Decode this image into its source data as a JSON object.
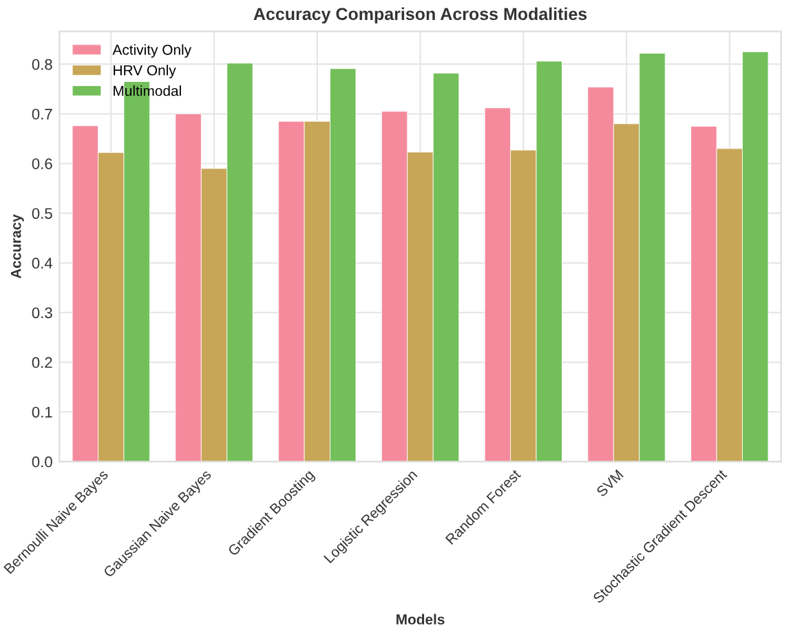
{
  "chart_data": {
    "type": "bar",
    "title": "Accuracy Comparison Across Modalities",
    "xlabel": "Models",
    "ylabel": "Accuracy",
    "categories": [
      "Bernoulli Naive Bayes",
      "Gaussian Naive Bayes",
      "Gradient Boosting",
      "Logistic Regression",
      "Random Forest",
      "SVM",
      "Stochastic Gradient Descent"
    ],
    "series": [
      {
        "name": "Activity Only",
        "color": "#f58a9c",
        "values": [
          0.676,
          0.7,
          0.685,
          0.705,
          0.712,
          0.754,
          0.675
        ]
      },
      {
        "name": "HRV Only",
        "color": "#c8a657",
        "values": [
          0.622,
          0.59,
          0.685,
          0.623,
          0.627,
          0.68,
          0.63
        ]
      },
      {
        "name": "Multimodal",
        "color": "#73bf5a",
        "values": [
          0.765,
          0.802,
          0.791,
          0.782,
          0.806,
          0.822,
          0.825
        ]
      }
    ],
    "ylim": [
      0,
      0.866
    ],
    "yticks": [
      {
        "value": 0,
        "label": "0.0"
      },
      0.1,
      0.2,
      0.3,
      0.4,
      0.5,
      0.6,
      0.7,
      0.8
    ],
    "grid": true,
    "legend": "top left"
  }
}
